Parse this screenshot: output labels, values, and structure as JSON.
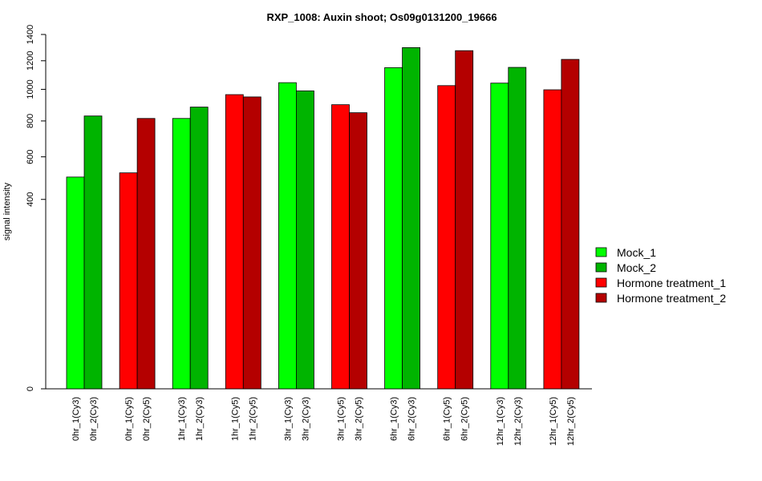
{
  "chart_data": {
    "type": "bar",
    "title": "RXP_1008: Auxin shoot; Os09g0131200_19666",
    "xlabel": "",
    "ylabel": "signal intensity",
    "ylim": [
      0,
      1400
    ],
    "y_scale": "sqrt",
    "y_ticks": [
      0,
      400,
      600,
      800,
      1000,
      1200,
      1400
    ],
    "grid": false,
    "legend_position": "right",
    "bar_border_color": "#000000",
    "series": [
      {
        "name": "Mock_1",
        "color": "#00ff00"
      },
      {
        "name": "Mock_2",
        "color": "#00b400"
      },
      {
        "name": "Hormone treatment_1",
        "color": "#ff0000"
      },
      {
        "name": "Hormone treatment_2",
        "color": "#b40000"
      }
    ],
    "categories": [
      "0hr_1(Cy3)",
      "0hr_2(Cy3)",
      "0hr_1(Cy5)",
      "0hr_2(Cy5)",
      "1hr_1(Cy3)",
      "1hr_2(Cy3)",
      "1hr_1(Cy5)",
      "1hr_2(Cy5)",
      "3hr_1(Cy3)",
      "3hr_2(Cy3)",
      "3hr_1(Cy5)",
      "3hr_2(Cy5)",
      "6hr_1(Cy3)",
      "6hr_2(Cy3)",
      "6hr_1(Cy5)",
      "6hr_2(Cy5)",
      "12hr_1(Cy3)",
      "12hr_2(Cy3)",
      "12hr_1(Cy5)",
      "12hr_2(Cy5)"
    ],
    "values": [
      500,
      830,
      520,
      815,
      815,
      885,
      965,
      950,
      1045,
      990,
      900,
      850,
      1150,
      1298,
      1025,
      1275,
      1042,
      1152,
      997,
      1210
    ],
    "bar_series": [
      0,
      1,
      2,
      3,
      0,
      1,
      2,
      3,
      0,
      1,
      2,
      3,
      0,
      1,
      2,
      3,
      0,
      1,
      2,
      3
    ]
  }
}
